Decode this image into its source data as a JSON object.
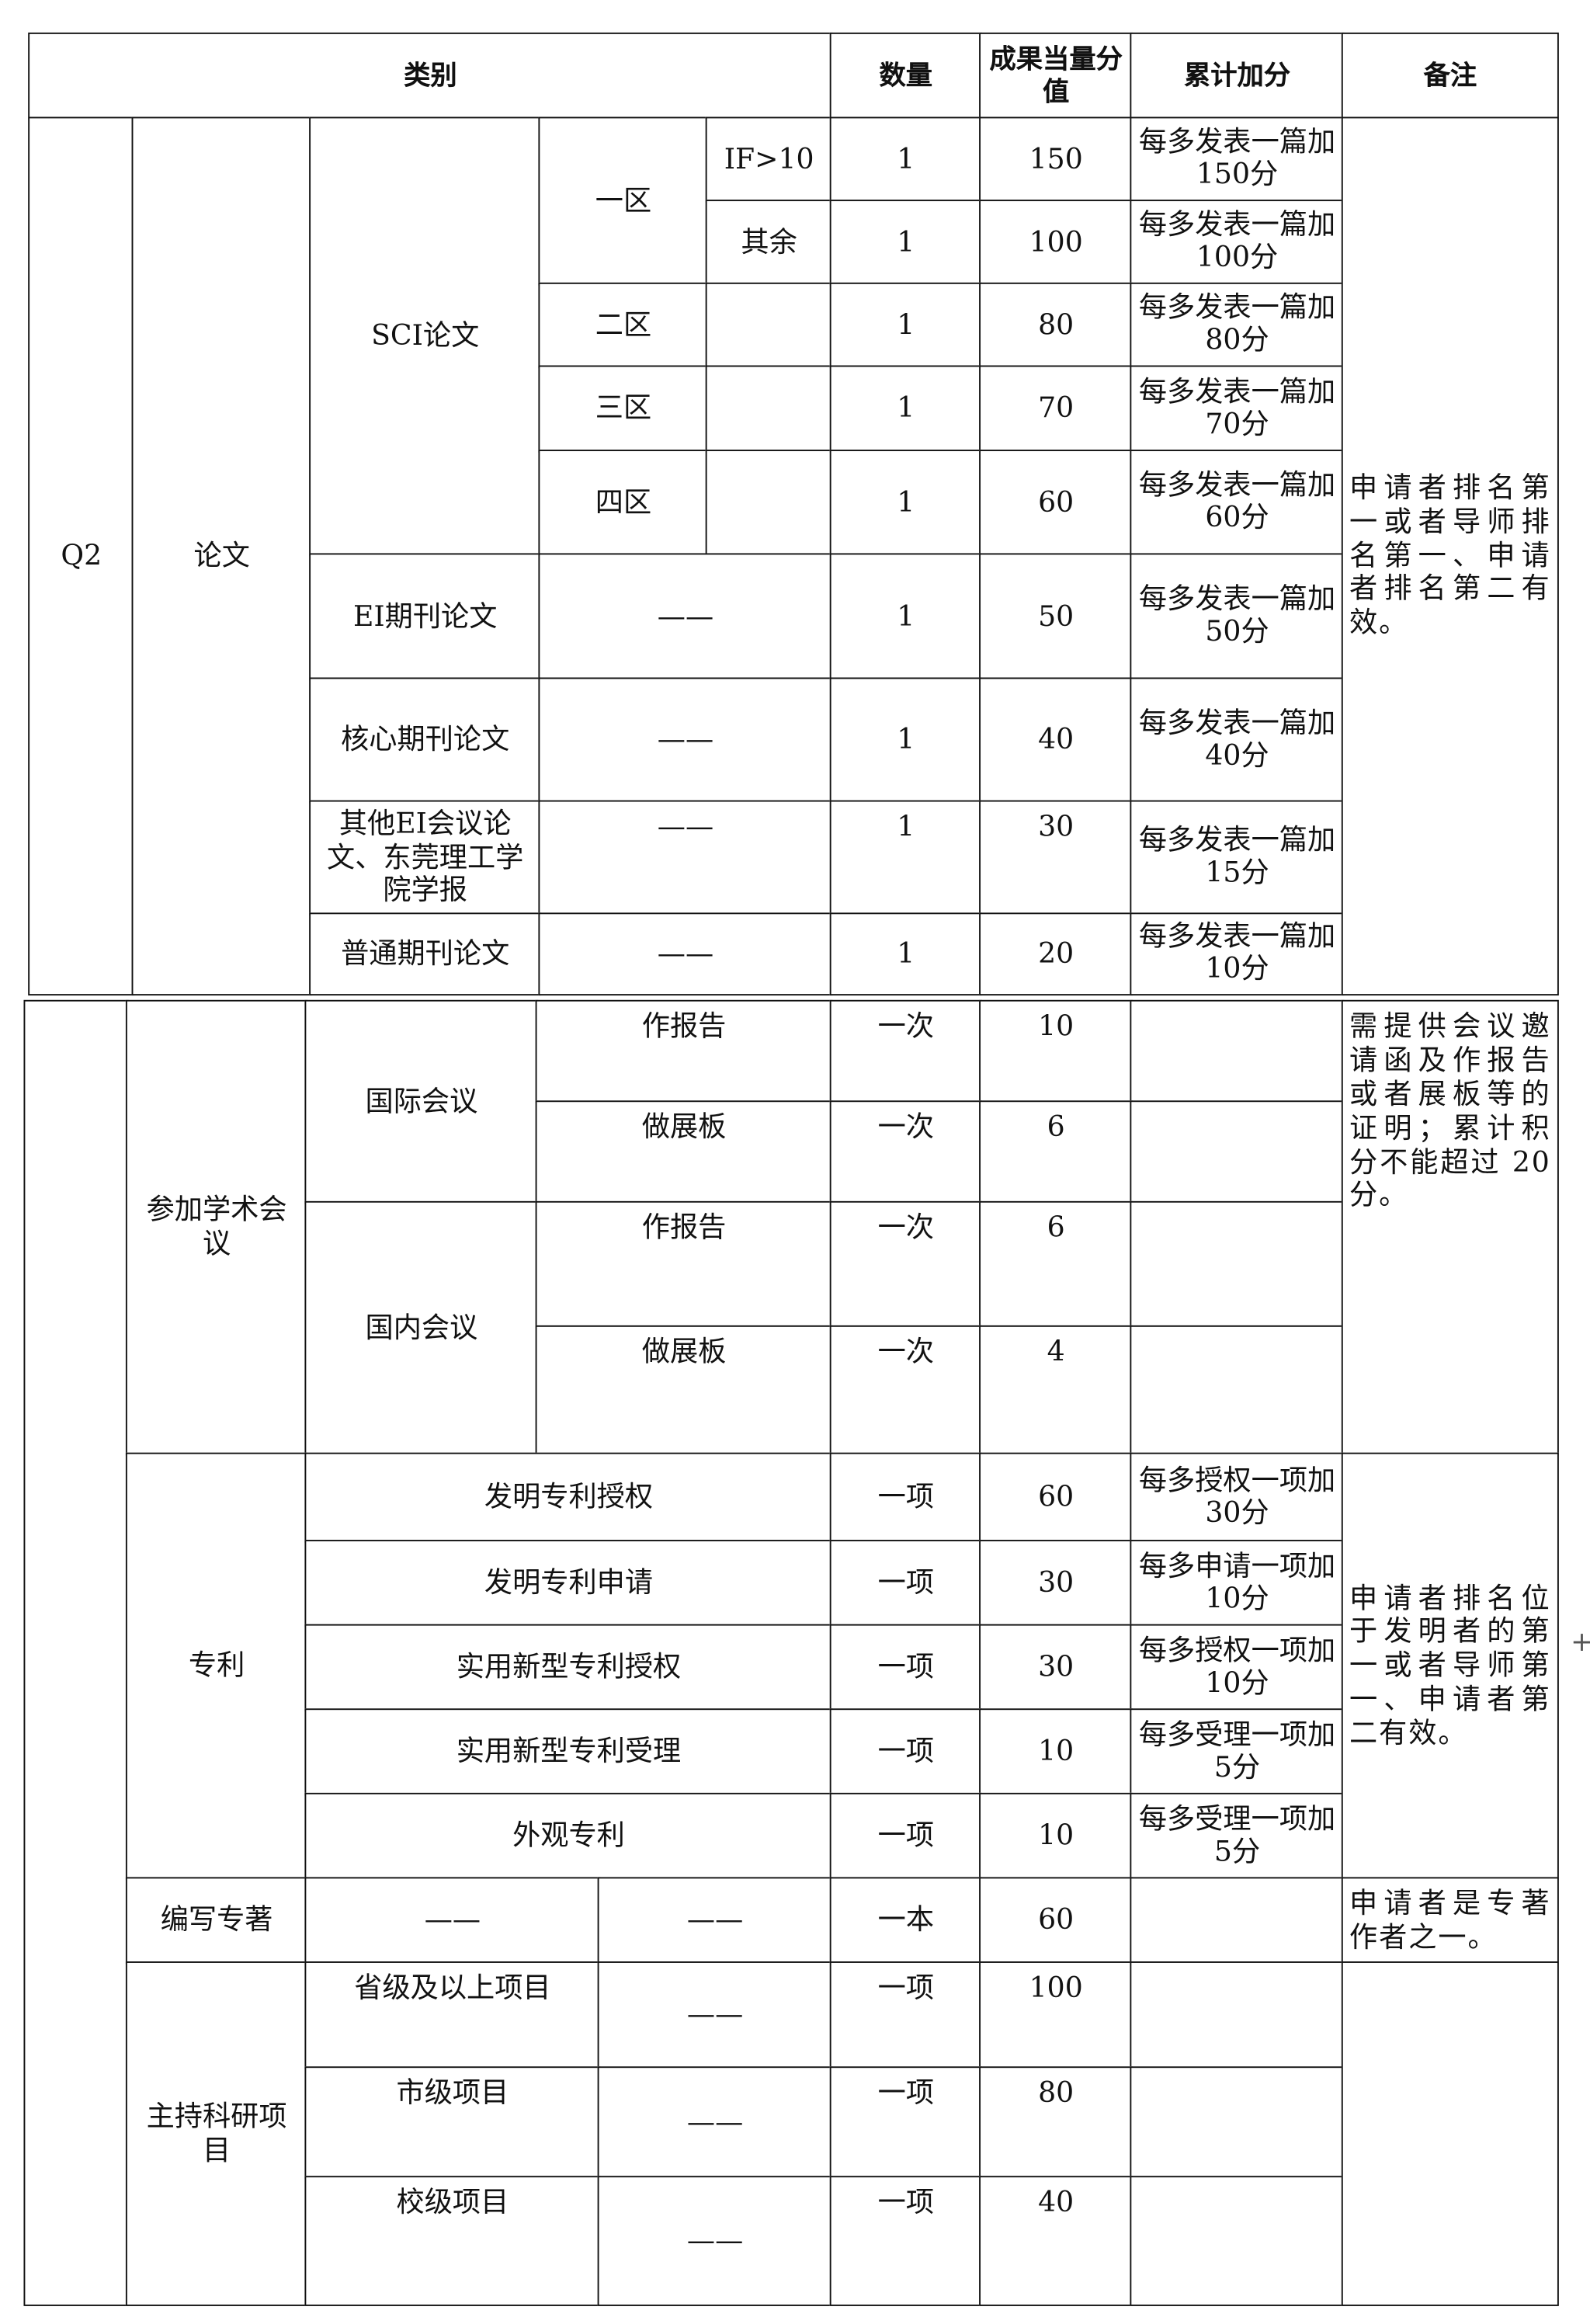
{
  "header": {
    "category": "类别",
    "quantity": "数量",
    "score": "成果当量分值",
    "cumulative": "累计加分",
    "remark": "备注"
  },
  "papers": {
    "code": "Q2",
    "label": "论文",
    "sci": {
      "label": "SCI论文",
      "zone1": "一区",
      "zone1_if": "IF>10",
      "zone1_rest": "其余",
      "zone2": "二区",
      "zone3": "三区",
      "zone4": "四区"
    },
    "rows": [
      {
        "qty": "1",
        "score": "150",
        "cum": "每多发表一篇加150分"
      },
      {
        "qty": "1",
        "score": "100",
        "cum": "每多发表一篇加100分"
      },
      {
        "qty": "1",
        "score": "80",
        "cum": "每多发表一篇加80分"
      },
      {
        "qty": "1",
        "score": "70",
        "cum": "每多发表一篇加70分"
      },
      {
        "qty": "1",
        "score": "60",
        "cum": "每多发表一篇加60分"
      },
      {
        "name": "EI期刊论文",
        "sub": "——",
        "qty": "1",
        "score": "50",
        "cum": "每多发表一篇加50分"
      },
      {
        "name": "核心期刊论文",
        "sub": "——",
        "qty": "1",
        "score": "40",
        "cum": "每多发表一篇加40分"
      },
      {
        "name": "其他EI会议论文、东莞理工学院学报",
        "sub": "——",
        "qty": "1",
        "score": "30",
        "cum": "每多发表一篇加15分"
      },
      {
        "name": "普通期刊论文",
        "sub": "——",
        "qty": "1",
        "score": "20",
        "cum": "每多发表一篇加10分"
      }
    ],
    "remark": "申请者排名第一或者导师排名第一、申请者排名第二有效。"
  },
  "conference": {
    "label": "参加学术会议",
    "international": "国际会议",
    "domestic": "国内会议",
    "rows": [
      {
        "type": "作报告",
        "qty": "一次",
        "score": "10"
      },
      {
        "type": "做展板",
        "qty": "一次",
        "score": "6"
      },
      {
        "type": "作报告",
        "qty": "一次",
        "score": "6"
      },
      {
        "type": "做展板",
        "qty": "一次",
        "score": "4"
      }
    ],
    "remark": "需提供会议邀请函及作报告或者展板等的证明；累计积分不能超过 20分。"
  },
  "patent": {
    "label": "专利",
    "rows": [
      {
        "name": "发明专利授权",
        "qty": "一项",
        "score": "60",
        "cum": "每多授权一项加30分"
      },
      {
        "name": "发明专利申请",
        "qty": "一项",
        "score": "30",
        "cum": "每多申请一项加10分"
      },
      {
        "name": "实用新型专利授权",
        "qty": "一项",
        "score": "30",
        "cum": "每多授权一项加10分"
      },
      {
        "name": "实用新型专利受理",
        "qty": "一项",
        "score": "10",
        "cum": "每多受理一项加5分"
      },
      {
        "name": "外观专利",
        "qty": "一项",
        "score": "10",
        "cum": "每多受理一项加5分"
      }
    ],
    "remark": "申请者排名位于发明者的第一或者导师第一、申请者第二有效。"
  },
  "monograph": {
    "label": "编写专著",
    "sub1": "——",
    "sub2": "——",
    "qty": "一本",
    "score": "60",
    "remark": "申请者是专著作者之一。"
  },
  "project": {
    "label": "主持科研项目",
    "rows": [
      {
        "name": "省级及以上项目",
        "sub": "——",
        "qty": "一项",
        "score": "100"
      },
      {
        "name": "市级项目",
        "sub": "——",
        "qty": "一项",
        "score": "80"
      },
      {
        "name": "校级项目",
        "sub": "——",
        "qty": "一项",
        "score": "40"
      }
    ]
  },
  "misc": {
    "plus_icon": "+"
  }
}
